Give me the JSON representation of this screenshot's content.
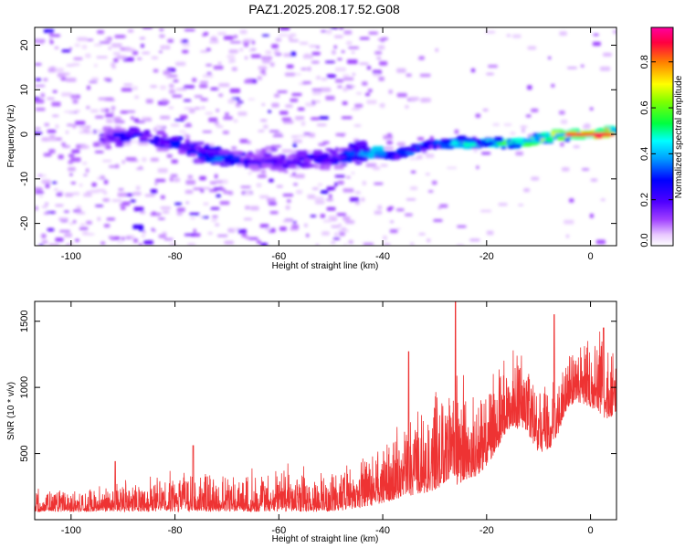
{
  "title": "PAZ1.2025.208.17.52.G08",
  "colorbar": {
    "label": "Normalized spectral amplitude",
    "range": [
      0,
      0.95
    ],
    "ticks": [
      "0.0",
      "0.2",
      "0.4",
      "0.6",
      "0.8"
    ]
  },
  "chart_data": [
    {
      "type": "heatmap",
      "name": "spectrogram",
      "xlabel": "Height of straight line (km)",
      "ylabel": "Frequency (Hz)",
      "xlim": [
        -107,
        5
      ],
      "ylim": [
        -25,
        24
      ],
      "xticks": [
        -100,
        -80,
        -60,
        -40,
        -20,
        0
      ],
      "yticks": [
        -20,
        -10,
        0,
        10,
        20
      ],
      "ridge": {
        "x": [
          -94,
          -88,
          -80,
          -72,
          -64,
          -56,
          -48,
          -42,
          -38,
          -33,
          -30,
          -26,
          -22,
          -18,
          -14,
          -10,
          -6,
          -2,
          2,
          5
        ],
        "y": [
          -1,
          0,
          -2,
          -5,
          -6,
          -6,
          -5,
          -4,
          -5,
          -3,
          -2,
          -2,
          -2,
          -2,
          -2,
          -1,
          0,
          0,
          0,
          1
        ],
        "amplitude": [
          0.3,
          0.35,
          0.35,
          0.4,
          0.3,
          0.3,
          0.35,
          0.5,
          0.45,
          0.45,
          0.45,
          0.5,
          0.5,
          0.6,
          0.65,
          0.7,
          0.75,
          0.85,
          0.95,
          0.75
        ]
      },
      "colors": [
        "#ffffff",
        "#f2e0ff",
        "#d8a8ff",
        "#9a40ff",
        "#5a00ff",
        "#0000ff",
        "#00c8ff",
        "#00ff80",
        "#80ff00",
        "#ffff00",
        "#ff8000",
        "#ff0040",
        "#ff00a0"
      ]
    },
    {
      "type": "line",
      "name": "snr",
      "xlabel": "Height of straight line (km)",
      "ylabel": "SNR (10 * v/v)",
      "xlim": [
        -107,
        5
      ],
      "ylim": [
        0,
        1650
      ],
      "xticks": [
        -100,
        -80,
        -60,
        -40,
        -20,
        0
      ],
      "yticks": [
        500,
        1000,
        1500
      ],
      "color": "#ee3333",
      "envelope": {
        "x": [
          -107,
          -95,
          -92,
          -85,
          -78,
          -70,
          -60,
          -50,
          -45,
          -40,
          -38,
          -35,
          -32,
          -30,
          -27,
          -26,
          -24,
          -22,
          -20,
          -17,
          -15,
          -12,
          -10,
          -7,
          -5,
          -3,
          0,
          3,
          5
        ],
        "low": [
          60,
          60,
          60,
          60,
          60,
          60,
          60,
          60,
          80,
          120,
          150,
          180,
          200,
          220,
          300,
          250,
          300,
          320,
          400,
          600,
          700,
          650,
          500,
          550,
          800,
          900,
          850,
          750,
          800
        ],
        "high": [
          200,
          230,
          250,
          280,
          320,
          330,
          350,
          340,
          380,
          500,
          600,
          750,
          800,
          950,
          900,
          1100,
          900,
          950,
          1000,
          1150,
          1200,
          1150,
          1000,
          1050,
          1200,
          1300,
          1350,
          1350,
          1300
        ]
      },
      "peaks": [
        {
          "x": -91.5,
          "y": 440
        },
        {
          "x": -76.5,
          "y": 560
        },
        {
          "x": -35,
          "y": 1270
        },
        {
          "x": -26,
          "y": 1650
        },
        {
          "x": -7,
          "y": 1550
        },
        {
          "x": 2.5,
          "y": 1450
        }
      ]
    }
  ]
}
